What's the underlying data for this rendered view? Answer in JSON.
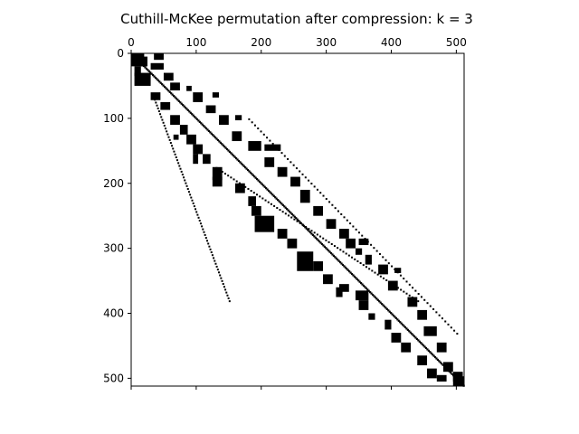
{
  "chart_data": {
    "type": "heatmap",
    "subtype": "sparsity-pattern (spy plot)",
    "title": "Cuthill-McKee permutation after compression: k = 3",
    "xlabel": "",
    "ylabel": "",
    "matrix_size": 512,
    "xlim": [
      0,
      512
    ],
    "ylim": [
      512,
      0
    ],
    "x_axis_position": "top",
    "x_ticks": [
      0,
      100,
      200,
      300,
      400,
      500
    ],
    "y_ticks": [
      0,
      100,
      200,
      300,
      400,
      500
    ],
    "x_tick_labels": [
      "0",
      "100",
      "200",
      "300",
      "400",
      "500"
    ],
    "y_tick_labels": [
      "0",
      "100",
      "200",
      "300",
      "400",
      "500"
    ],
    "grid": false,
    "legend": "none",
    "colors": {
      "nonzero": "#000000",
      "background": "#ffffff",
      "frame": "#000000"
    },
    "nonzero_blocks": [
      {
        "row": 0,
        "col": 0,
        "h": 20,
        "w": 20
      },
      {
        "row": 0,
        "col": 35,
        "h": 10,
        "w": 15
      },
      {
        "row": 5,
        "col": 15,
        "h": 15,
        "w": 10
      },
      {
        "row": 20,
        "col": 5,
        "h": 15,
        "w": 10
      },
      {
        "row": 15,
        "col": 30,
        "h": 10,
        "w": 20
      },
      {
        "row": 30,
        "col": 5,
        "h": 20,
        "w": 25
      },
      {
        "row": 30,
        "col": 50,
        "h": 12,
        "w": 15
      },
      {
        "row": 45,
        "col": 60,
        "h": 12,
        "w": 15
      },
      {
        "row": 50,
        "col": 85,
        "h": 8,
        "w": 8
      },
      {
        "row": 60,
        "col": 30,
        "h": 12,
        "w": 15
      },
      {
        "row": 60,
        "col": 95,
        "h": 15,
        "w": 15
      },
      {
        "row": 60,
        "col": 125,
        "h": 8,
        "w": 10
      },
      {
        "row": 75,
        "col": 45,
        "h": 12,
        "w": 15
      },
      {
        "row": 80,
        "col": 115,
        "h": 12,
        "w": 15
      },
      {
        "row": 95,
        "col": 60,
        "h": 15,
        "w": 15
      },
      {
        "row": 95,
        "col": 135,
        "h": 15,
        "w": 15
      },
      {
        "row": 95,
        "col": 160,
        "h": 8,
        "w": 10
      },
      {
        "row": 110,
        "col": 75,
        "h": 15,
        "w": 12
      },
      {
        "row": 120,
        "col": 155,
        "h": 15,
        "w": 15
      },
      {
        "row": 125,
        "col": 85,
        "h": 15,
        "w": 15
      },
      {
        "row": 125,
        "col": 65,
        "h": 8,
        "w": 8
      },
      {
        "row": 135,
        "col": 180,
        "h": 15,
        "w": 20
      },
      {
        "row": 140,
        "col": 95,
        "h": 15,
        "w": 15
      },
      {
        "row": 140,
        "col": 205,
        "h": 10,
        "w": 25
      },
      {
        "row": 155,
        "col": 110,
        "h": 15,
        "w": 12
      },
      {
        "row": 155,
        "col": 95,
        "h": 15,
        "w": 8
      },
      {
        "row": 160,
        "col": 205,
        "h": 15,
        "w": 15
      },
      {
        "row": 175,
        "col": 125,
        "h": 20,
        "w": 15
      },
      {
        "row": 175,
        "col": 225,
        "h": 15,
        "w": 15
      },
      {
        "row": 190,
        "col": 125,
        "h": 15,
        "w": 15
      },
      {
        "row": 190,
        "col": 245,
        "h": 15,
        "w": 15
      },
      {
        "row": 200,
        "col": 160,
        "h": 15,
        "w": 15
      },
      {
        "row": 210,
        "col": 260,
        "h": 20,
        "w": 15
      },
      {
        "row": 220,
        "col": 180,
        "h": 15,
        "w": 12
      },
      {
        "row": 235,
        "col": 185,
        "h": 15,
        "w": 15
      },
      {
        "row": 235,
        "col": 280,
        "h": 15,
        "w": 15
      },
      {
        "row": 250,
        "col": 190,
        "h": 25,
        "w": 30
      },
      {
        "row": 255,
        "col": 300,
        "h": 15,
        "w": 15
      },
      {
        "row": 270,
        "col": 225,
        "h": 15,
        "w": 15
      },
      {
        "row": 270,
        "col": 320,
        "h": 15,
        "w": 15
      },
      {
        "row": 285,
        "col": 240,
        "h": 15,
        "w": 15
      },
      {
        "row": 285,
        "col": 330,
        "h": 15,
        "w": 15
      },
      {
        "row": 285,
        "col": 350,
        "h": 10,
        "w": 15
      },
      {
        "row": 305,
        "col": 255,
        "h": 30,
        "w": 25
      },
      {
        "row": 300,
        "col": 345,
        "h": 10,
        "w": 10
      },
      {
        "row": 310,
        "col": 360,
        "h": 15,
        "w": 10
      },
      {
        "row": 320,
        "col": 280,
        "h": 15,
        "w": 15
      },
      {
        "row": 325,
        "col": 380,
        "h": 15,
        "w": 15
      },
      {
        "row": 330,
        "col": 405,
        "h": 8,
        "w": 10
      },
      {
        "row": 340,
        "col": 295,
        "h": 15,
        "w": 15
      },
      {
        "row": 350,
        "col": 395,
        "h": 15,
        "w": 15
      },
      {
        "row": 355,
        "col": 320,
        "h": 12,
        "w": 15
      },
      {
        "row": 360,
        "col": 315,
        "h": 15,
        "w": 10
      },
      {
        "row": 365,
        "col": 345,
        "h": 15,
        "w": 20
      },
      {
        "row": 380,
        "col": 350,
        "h": 15,
        "w": 15
      },
      {
        "row": 375,
        "col": 425,
        "h": 15,
        "w": 15
      },
      {
        "row": 395,
        "col": 440,
        "h": 15,
        "w": 15
      },
      {
        "row": 400,
        "col": 365,
        "h": 10,
        "w": 10
      },
      {
        "row": 410,
        "col": 390,
        "h": 15,
        "w": 10
      },
      {
        "row": 420,
        "col": 450,
        "h": 15,
        "w": 20
      },
      {
        "row": 430,
        "col": 400,
        "h": 15,
        "w": 15
      },
      {
        "row": 445,
        "col": 415,
        "h": 15,
        "w": 15
      },
      {
        "row": 445,
        "col": 470,
        "h": 15,
        "w": 15
      },
      {
        "row": 465,
        "col": 440,
        "h": 15,
        "w": 15
      },
      {
        "row": 475,
        "col": 480,
        "h": 15,
        "w": 15
      },
      {
        "row": 485,
        "col": 455,
        "h": 15,
        "w": 15
      },
      {
        "row": 490,
        "col": 495,
        "h": 15,
        "w": 15
      },
      {
        "row": 495,
        "col": 470,
        "h": 10,
        "w": 15
      },
      {
        "row": 497,
        "col": 495,
        "h": 15,
        "w": 17
      }
    ],
    "nonzero_traces": [
      {
        "from": [
          35,
          70
        ],
        "to": [
          150,
          380
        ],
        "width": 2
      },
      {
        "from": [
          130,
          175
        ],
        "to": [
          440,
          380
        ],
        "width": 2
      },
      {
        "from": [
          180,
          100
        ],
        "to": [
          500,
          430
        ],
        "width": 2
      }
    ]
  }
}
